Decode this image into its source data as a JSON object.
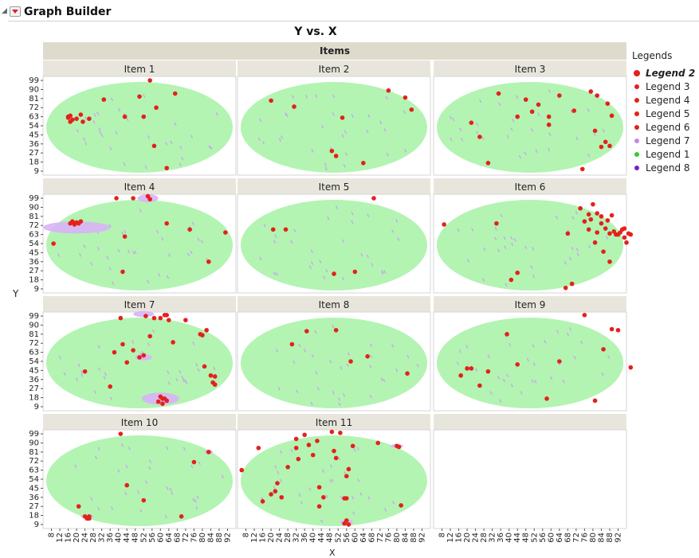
{
  "header": {
    "title": "Graph Builder"
  },
  "chart_data": {
    "type": "scatter",
    "title": "Y vs. X",
    "xlabel": "X",
    "ylabel": "Y",
    "group_label": "Items",
    "xlim": [
      4,
      96
    ],
    "ylim": [
      5,
      103
    ],
    "xticks": [
      8,
      12,
      16,
      20,
      24,
      28,
      32,
      36,
      40,
      44,
      48,
      52,
      56,
      60,
      64,
      68,
      72,
      76,
      80,
      84,
      88,
      92
    ],
    "yticks": [
      9,
      18,
      27,
      36,
      45,
      54,
      63,
      72,
      81,
      90,
      99
    ],
    "panels": [
      {
        "name": "Item 1",
        "points": [
          [
            16,
            62
          ],
          [
            17,
            64
          ],
          [
            18,
            60
          ],
          [
            20,
            61
          ],
          [
            22,
            65
          ],
          [
            23,
            58
          ],
          [
            26,
            61
          ],
          [
            33,
            80
          ],
          [
            43,
            63
          ],
          [
            50,
            83
          ],
          [
            52,
            63
          ],
          [
            55,
            99
          ],
          [
            58,
            72
          ],
          [
            57,
            34
          ],
          [
            63,
            12
          ],
          [
            67,
            86
          ],
          [
            16,
            63
          ],
          [
            17,
            58
          ]
        ],
        "purple": []
      },
      {
        "name": "Item 2",
        "points": [
          [
            20,
            79
          ],
          [
            31,
            73
          ],
          [
            54,
            62
          ],
          [
            49,
            29
          ],
          [
            51,
            24
          ],
          [
            64,
            17
          ],
          [
            76,
            89
          ],
          [
            84,
            82
          ],
          [
            87,
            70
          ]
        ],
        "purple": []
      },
      {
        "name": "Item 3",
        "points": [
          [
            22,
            57
          ],
          [
            26,
            43
          ],
          [
            30,
            17
          ],
          [
            35,
            86
          ],
          [
            44,
            63
          ],
          [
            48,
            80
          ],
          [
            51,
            68
          ],
          [
            54,
            75
          ],
          [
            59,
            55
          ],
          [
            59,
            63
          ],
          [
            64,
            84
          ],
          [
            71,
            69
          ],
          [
            75,
            11
          ],
          [
            79,
            88
          ],
          [
            82,
            84
          ],
          [
            87,
            76
          ],
          [
            89,
            64
          ],
          [
            81,
            49
          ],
          [
            86,
            38
          ],
          [
            88,
            34
          ],
          [
            84,
            33
          ]
        ],
        "purple": []
      },
      {
        "name": "Item 4",
        "points": [
          [
            17,
            74
          ],
          [
            18,
            76
          ],
          [
            19,
            73
          ],
          [
            20,
            75
          ],
          [
            21,
            74
          ],
          [
            22,
            76
          ],
          [
            9,
            54
          ],
          [
            39,
            99
          ],
          [
            47,
            99
          ],
          [
            54,
            101
          ],
          [
            55,
            98
          ],
          [
            63,
            74
          ],
          [
            43,
            61
          ],
          [
            42,
            26
          ],
          [
            74,
            68
          ],
          [
            83,
            36
          ],
          [
            91,
            65
          ]
        ],
        "purple": [
          [
            20,
            70,
            16,
            6
          ],
          [
            54,
            99,
            5,
            4
          ]
        ]
      },
      {
        "name": "Item 5",
        "points": [
          [
            21,
            68
          ],
          [
            27,
            68
          ],
          [
            50,
            24
          ],
          [
            60,
            26
          ],
          [
            69,
            99
          ]
        ],
        "purple": []
      },
      {
        "name": "Item 6",
        "points": [
          [
            9,
            73
          ],
          [
            34,
            74
          ],
          [
            44,
            25
          ],
          [
            41,
            18
          ],
          [
            67,
            10
          ],
          [
            68,
            64
          ],
          [
            70,
            14
          ],
          [
            74,
            89
          ],
          [
            76,
            76
          ],
          [
            78,
            83
          ],
          [
            78,
            68
          ],
          [
            79,
            78
          ],
          [
            80,
            93
          ],
          [
            81,
            55
          ],
          [
            82,
            65
          ],
          [
            82,
            84
          ],
          [
            84,
            81
          ],
          [
            84,
            74
          ],
          [
            85,
            46
          ],
          [
            86,
            69
          ],
          [
            87,
            77
          ],
          [
            88,
            36
          ],
          [
            88,
            64
          ],
          [
            89,
            82
          ],
          [
            90,
            66
          ],
          [
            91,
            63
          ],
          [
            92,
            63
          ],
          [
            93,
            65
          ],
          [
            94,
            68
          ],
          [
            95,
            60
          ],
          [
            95,
            69
          ],
          [
            96,
            55
          ],
          [
            97,
            64
          ],
          [
            98,
            63
          ]
        ],
        "purple": []
      },
      {
        "name": "Item 7",
        "points": [
          [
            24,
            44
          ],
          [
            36,
            29
          ],
          [
            38,
            63
          ],
          [
            41,
            97
          ],
          [
            42,
            71
          ],
          [
            44,
            53
          ],
          [
            47,
            65
          ],
          [
            50,
            58
          ],
          [
            52,
            60
          ],
          [
            53,
            99
          ],
          [
            55,
            79
          ],
          [
            57,
            97
          ],
          [
            60,
            97
          ],
          [
            62,
            100
          ],
          [
            63,
            100
          ],
          [
            64,
            95
          ],
          [
            66,
            73
          ],
          [
            72,
            95
          ],
          [
            79,
            81
          ],
          [
            80,
            80
          ],
          [
            81,
            49
          ],
          [
            82,
            85
          ],
          [
            84,
            40
          ],
          [
            85,
            33
          ],
          [
            86,
            39
          ],
          [
            60,
            19
          ],
          [
            61,
            17
          ],
          [
            62,
            17
          ],
          [
            63,
            15
          ],
          [
            59,
            14
          ],
          [
            61,
            12
          ],
          [
            86,
            31
          ]
        ],
        "purple": [
          [
            60,
            17,
            9,
            6
          ],
          [
            52,
            101,
            5,
            3
          ],
          [
            52,
            58,
            4,
            3
          ]
        ]
      },
      {
        "name": "Item 8",
        "points": [
          [
            30,
            71
          ],
          [
            37,
            84
          ],
          [
            51,
            85
          ],
          [
            58,
            54
          ],
          [
            66,
            59
          ],
          [
            85,
            42
          ]
        ],
        "purple": []
      },
      {
        "name": "Item 9",
        "points": [
          [
            17,
            40
          ],
          [
            20,
            47
          ],
          [
            22,
            47
          ],
          [
            26,
            30
          ],
          [
            30,
            44
          ],
          [
            39,
            81
          ],
          [
            44,
            51
          ],
          [
            58,
            17
          ],
          [
            64,
            54
          ],
          [
            76,
            100
          ],
          [
            81,
            15
          ],
          [
            85,
            66
          ],
          [
            89,
            86
          ],
          [
            92,
            85
          ],
          [
            98,
            48
          ]
        ],
        "purple": []
      },
      {
        "name": "Item 10",
        "points": [
          [
            21,
            27
          ],
          [
            24,
            17
          ],
          [
            25,
            15
          ],
          [
            26,
            17
          ],
          [
            26,
            15
          ],
          [
            41,
            99
          ],
          [
            44,
            48
          ],
          [
            52,
            33
          ],
          [
            70,
            17
          ],
          [
            76,
            71
          ],
          [
            83,
            81
          ]
        ],
        "purple": [
          [
            25,
            17,
            3,
            2
          ],
          [
            83,
            81,
            2,
            2
          ]
        ]
      },
      {
        "name": "Item 11",
        "points": [
          [
            6,
            63
          ],
          [
            14,
            85
          ],
          [
            16,
            32
          ],
          [
            20,
            39
          ],
          [
            22,
            42
          ],
          [
            23,
            50
          ],
          [
            25,
            36
          ],
          [
            28,
            66
          ],
          [
            32,
            85
          ],
          [
            32,
            94
          ],
          [
            33,
            74
          ],
          [
            36,
            98
          ],
          [
            38,
            88
          ],
          [
            40,
            78
          ],
          [
            42,
            92
          ],
          [
            43,
            46
          ],
          [
            43,
            27
          ],
          [
            45,
            36
          ],
          [
            49,
            101
          ],
          [
            50,
            82
          ],
          [
            51,
            75
          ],
          [
            53,
            100
          ],
          [
            55,
            35
          ],
          [
            56,
            35
          ],
          [
            56,
            57
          ],
          [
            57,
            64
          ],
          [
            56,
            13
          ],
          [
            57,
            9
          ],
          [
            55,
            10
          ],
          [
            59,
            87
          ],
          [
            71,
            90
          ],
          [
            80,
            87
          ],
          [
            81,
            86
          ],
          [
            82,
            28
          ]
        ],
        "purple": [
          [
            80,
            87,
            3,
            2
          ],
          [
            56,
            11,
            3,
            3
          ]
        ]
      },
      {
        "name": "",
        "points": [],
        "purple": []
      }
    ]
  },
  "legend": {
    "title": "Legends",
    "items": [
      {
        "label": "Legend 2",
        "color": "#e4211c",
        "big": true,
        "bold": true
      },
      {
        "label": "Legend 3",
        "color": "#e4211c",
        "big": false,
        "bold": false
      },
      {
        "label": "Legend 4",
        "color": "#e4211c",
        "big": false,
        "bold": false
      },
      {
        "label": "Legend 5",
        "color": "#e4211c",
        "big": false,
        "bold": false
      },
      {
        "label": "Legend 6",
        "color": "#e4211c",
        "big": false,
        "bold": false
      },
      {
        "label": "Legend 7",
        "color": "#c586f2",
        "big": false,
        "bold": false
      },
      {
        "label": "Legend 1",
        "color": "#33cc33",
        "big": false,
        "bold": false
      },
      {
        "label": "Legend 8",
        "color": "#7b1fc4",
        "big": false,
        "bold": false
      }
    ]
  },
  "colors": {
    "ellipse": "#b3f4b3",
    "point": "#e4211c",
    "density": "#d9b3f7",
    "dash": "#c9a6ec",
    "strip": "#e8e6dc",
    "items_strip": "#dedbcd"
  }
}
